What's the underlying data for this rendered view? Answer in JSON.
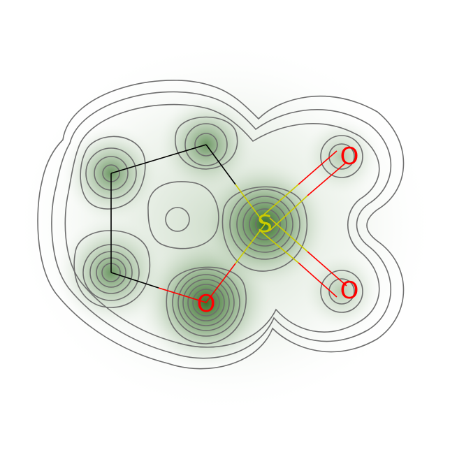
{
  "atoms": [
    {
      "id": "c1",
      "element": "C",
      "label": "",
      "color": "#000000"
    },
    {
      "id": "c2",
      "element": "C",
      "label": "",
      "color": "#000000"
    },
    {
      "id": "c3",
      "element": "C",
      "label": "",
      "color": "#000000"
    },
    {
      "id": "s1",
      "element": "S",
      "label": "S",
      "color": "#cccc00"
    },
    {
      "id": "o1",
      "element": "O",
      "label": "O",
      "color": "#ff0000"
    },
    {
      "id": "o2",
      "element": "O",
      "label": "O",
      "color": "#ff0000"
    },
    {
      "id": "o3",
      "element": "O",
      "label": "O",
      "color": "#ff0000"
    }
  ],
  "bonds": [
    {
      "id": "b1",
      "from": "c1",
      "to": "c2",
      "order": 1
    },
    {
      "id": "b2",
      "from": "c2",
      "to": "c3",
      "order": 1
    },
    {
      "id": "b3",
      "from": "c1",
      "to": "s1",
      "order": 1
    },
    {
      "id": "b4",
      "from": "s1",
      "to": "o3",
      "order": 1
    },
    {
      "id": "b5",
      "from": "c3",
      "to": "o3",
      "order": 1
    },
    {
      "id": "b6",
      "from": "s1",
      "to": "o1",
      "order": 2
    },
    {
      "id": "b7",
      "from": "s1",
      "to": "o2",
      "order": 2
    }
  ],
  "colors": {
    "carbon": "#000000",
    "sulfur": "#cccc00",
    "oxygen": "#ff0000",
    "contour": "#6e6e6e",
    "density": "#2e6b20"
  }
}
